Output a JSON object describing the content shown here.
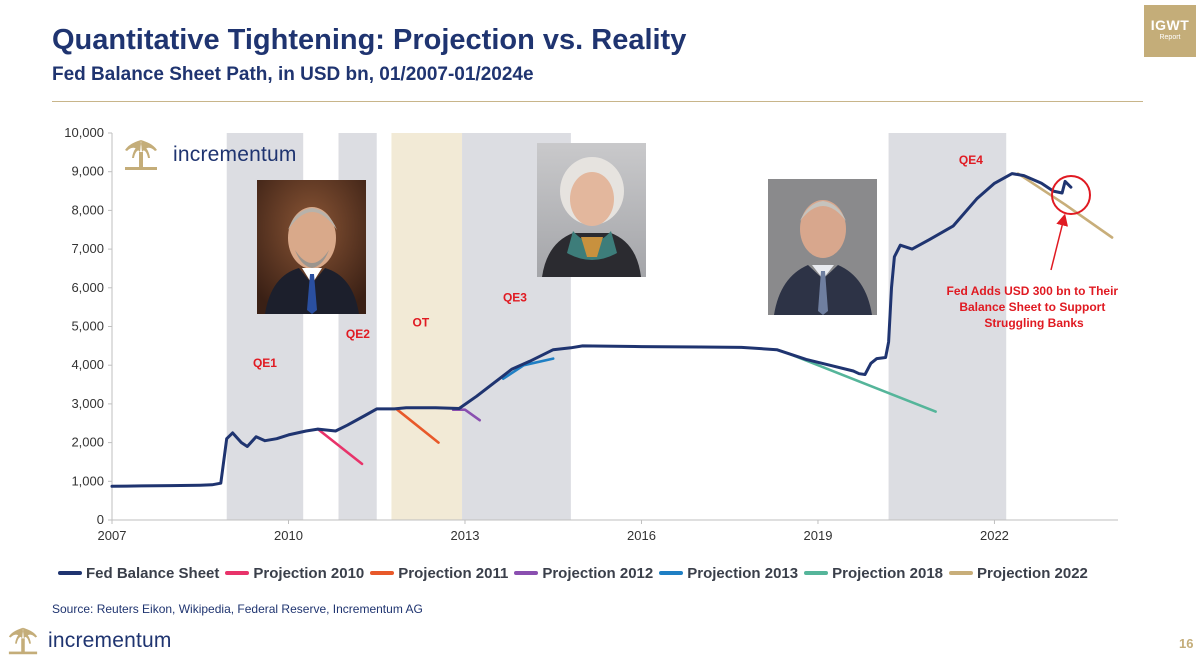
{
  "header": {
    "title": "Quantitative Tightening: Projection vs. Reality",
    "subtitle": "Fed Balance Sheet Path, in USD bn, 01/2007-01/2024e"
  },
  "badge": {
    "line1": "IGWT",
    "line2": "Report",
    "color": "#c4ad79"
  },
  "brand": {
    "name": "incrementum",
    "color": "#1f3470",
    "gold": "#c4ad79"
  },
  "source_note": "Source: Reuters Eikon, Wikipedia, Federal Reserve, Incrementum AG",
  "page_number": "16",
  "icons": [
    "tree-logo-icon",
    "portrait-icon"
  ],
  "chart_data": {
    "type": "line",
    "title": "",
    "xlabel": "",
    "ylabel": "",
    "xlim": [
      2007,
      2024.1
    ],
    "ylim": [
      0,
      10000
    ],
    "grid": false,
    "legend_position": "bottom",
    "x_ticks": [
      2007,
      2010,
      2013,
      2016,
      2019,
      2022
    ],
    "x_tick_labels": [
      "2007",
      "2010",
      "2013",
      "2016",
      "2019",
      "2022"
    ],
    "y_ticks": [
      0,
      1000,
      2000,
      3000,
      4000,
      5000,
      6000,
      7000,
      8000,
      9000,
      10000
    ],
    "y_tick_labels": [
      "0",
      "1,000",
      "2,000",
      "3,000",
      "4,000",
      "5,000",
      "6,000",
      "7,000",
      "8,000",
      "9,000",
      "10,000"
    ],
    "shaded_periods": [
      {
        "label": "QE1",
        "start": 2008.95,
        "end": 2010.25,
        "label_x": 2009.6,
        "label_y": 3950,
        "color": "#dcdde2"
      },
      {
        "label": "QE2",
        "start": 2010.85,
        "end": 2011.5,
        "label_x": 2011.18,
        "label_y": 4700,
        "color": "#dcdde2"
      },
      {
        "label": "OT",
        "start": 2011.75,
        "end": 2012.95,
        "label_x": 2012.25,
        "label_y": 5000,
        "color": "#f2ead6"
      },
      {
        "label": "QE3",
        "start": 2012.95,
        "end": 2014.8,
        "label_x": 2013.85,
        "label_y": 5650,
        "color": "#dcdde2"
      },
      {
        "label": "QE4",
        "start": 2020.2,
        "end": 2022.2,
        "label_x": 2021.6,
        "label_y": 9200,
        "color": "#dcdde2"
      }
    ],
    "series": [
      {
        "name": "Fed Balance Sheet",
        "color": "#1f3470",
        "x": [
          2007.0,
          2007.5,
          2008.0,
          2008.5,
          2008.7,
          2008.85,
          2008.95,
          2009.05,
          2009.2,
          2009.3,
          2009.45,
          2009.6,
          2009.8,
          2010.0,
          2010.3,
          2010.5,
          2010.8,
          2011.0,
          2011.3,
          2011.5,
          2011.8,
          2012.0,
          2012.5,
          2012.9,
          2013.2,
          2013.5,
          2013.8,
          2014.1,
          2014.5,
          2014.8,
          2015.0,
          2016.0,
          2017.0,
          2017.7,
          2018.3,
          2018.8,
          2019.2,
          2019.6,
          2019.7,
          2019.8,
          2019.9,
          2020.0,
          2020.15,
          2020.2,
          2020.25,
          2020.3,
          2020.4,
          2020.6,
          2020.9,
          2021.3,
          2021.7,
          2022.0,
          2022.3,
          2022.5,
          2022.8,
          2023.0,
          2023.15,
          2023.2,
          2023.3
        ],
        "y": [
          870,
          880,
          890,
          900,
          910,
          950,
          2100,
          2250,
          2000,
          1900,
          2150,
          2050,
          2100,
          2200,
          2300,
          2350,
          2300,
          2450,
          2700,
          2870,
          2870,
          2900,
          2900,
          2880,
          3200,
          3550,
          3900,
          4100,
          4400,
          4450,
          4500,
          4480,
          4470,
          4460,
          4400,
          4150,
          4000,
          3850,
          3780,
          3760,
          4050,
          4170,
          4200,
          4600,
          6000,
          6800,
          7100,
          7000,
          7250,
          7600,
          8300,
          8700,
          8950,
          8900,
          8700,
          8500,
          8450,
          8750,
          8600
        ]
      },
      {
        "name": "Projection 2010",
        "color": "#e8336a",
        "x": [
          2010.5,
          2011.25
        ],
        "y": [
          2350,
          1450
        ]
      },
      {
        "name": "Projection 2011",
        "color": "#e8592a",
        "x": [
          2011.85,
          2012.55
        ],
        "y": [
          2850,
          2000
        ]
      },
      {
        "name": "Projection 2012",
        "color": "#8a4fb0",
        "x": [
          2012.8,
          2013.0,
          2013.25
        ],
        "y": [
          2850,
          2850,
          2580
        ]
      },
      {
        "name": "Projection 2013",
        "color": "#1f7fc4",
        "x": [
          2013.65,
          2014.0,
          2014.5
        ],
        "y": [
          3650,
          4000,
          4170
        ]
      },
      {
        "name": "Projection 2018",
        "color": "#55b59a",
        "x": [
          2018.5,
          2021.0
        ],
        "y": [
          4300,
          2800
        ]
      },
      {
        "name": "Projection 2022",
        "color": "#c8ae7a",
        "x": [
          2022.4,
          2023.2,
          2024.0
        ],
        "y": [
          8950,
          8150,
          7300
        ]
      }
    ],
    "annotations": [
      {
        "text_lines": [
          "Fed Adds USD 300 bn to Their",
          "Balance Sheet to Support",
          "Struggling Banks"
        ],
        "color": "#e01a22"
      }
    ]
  }
}
